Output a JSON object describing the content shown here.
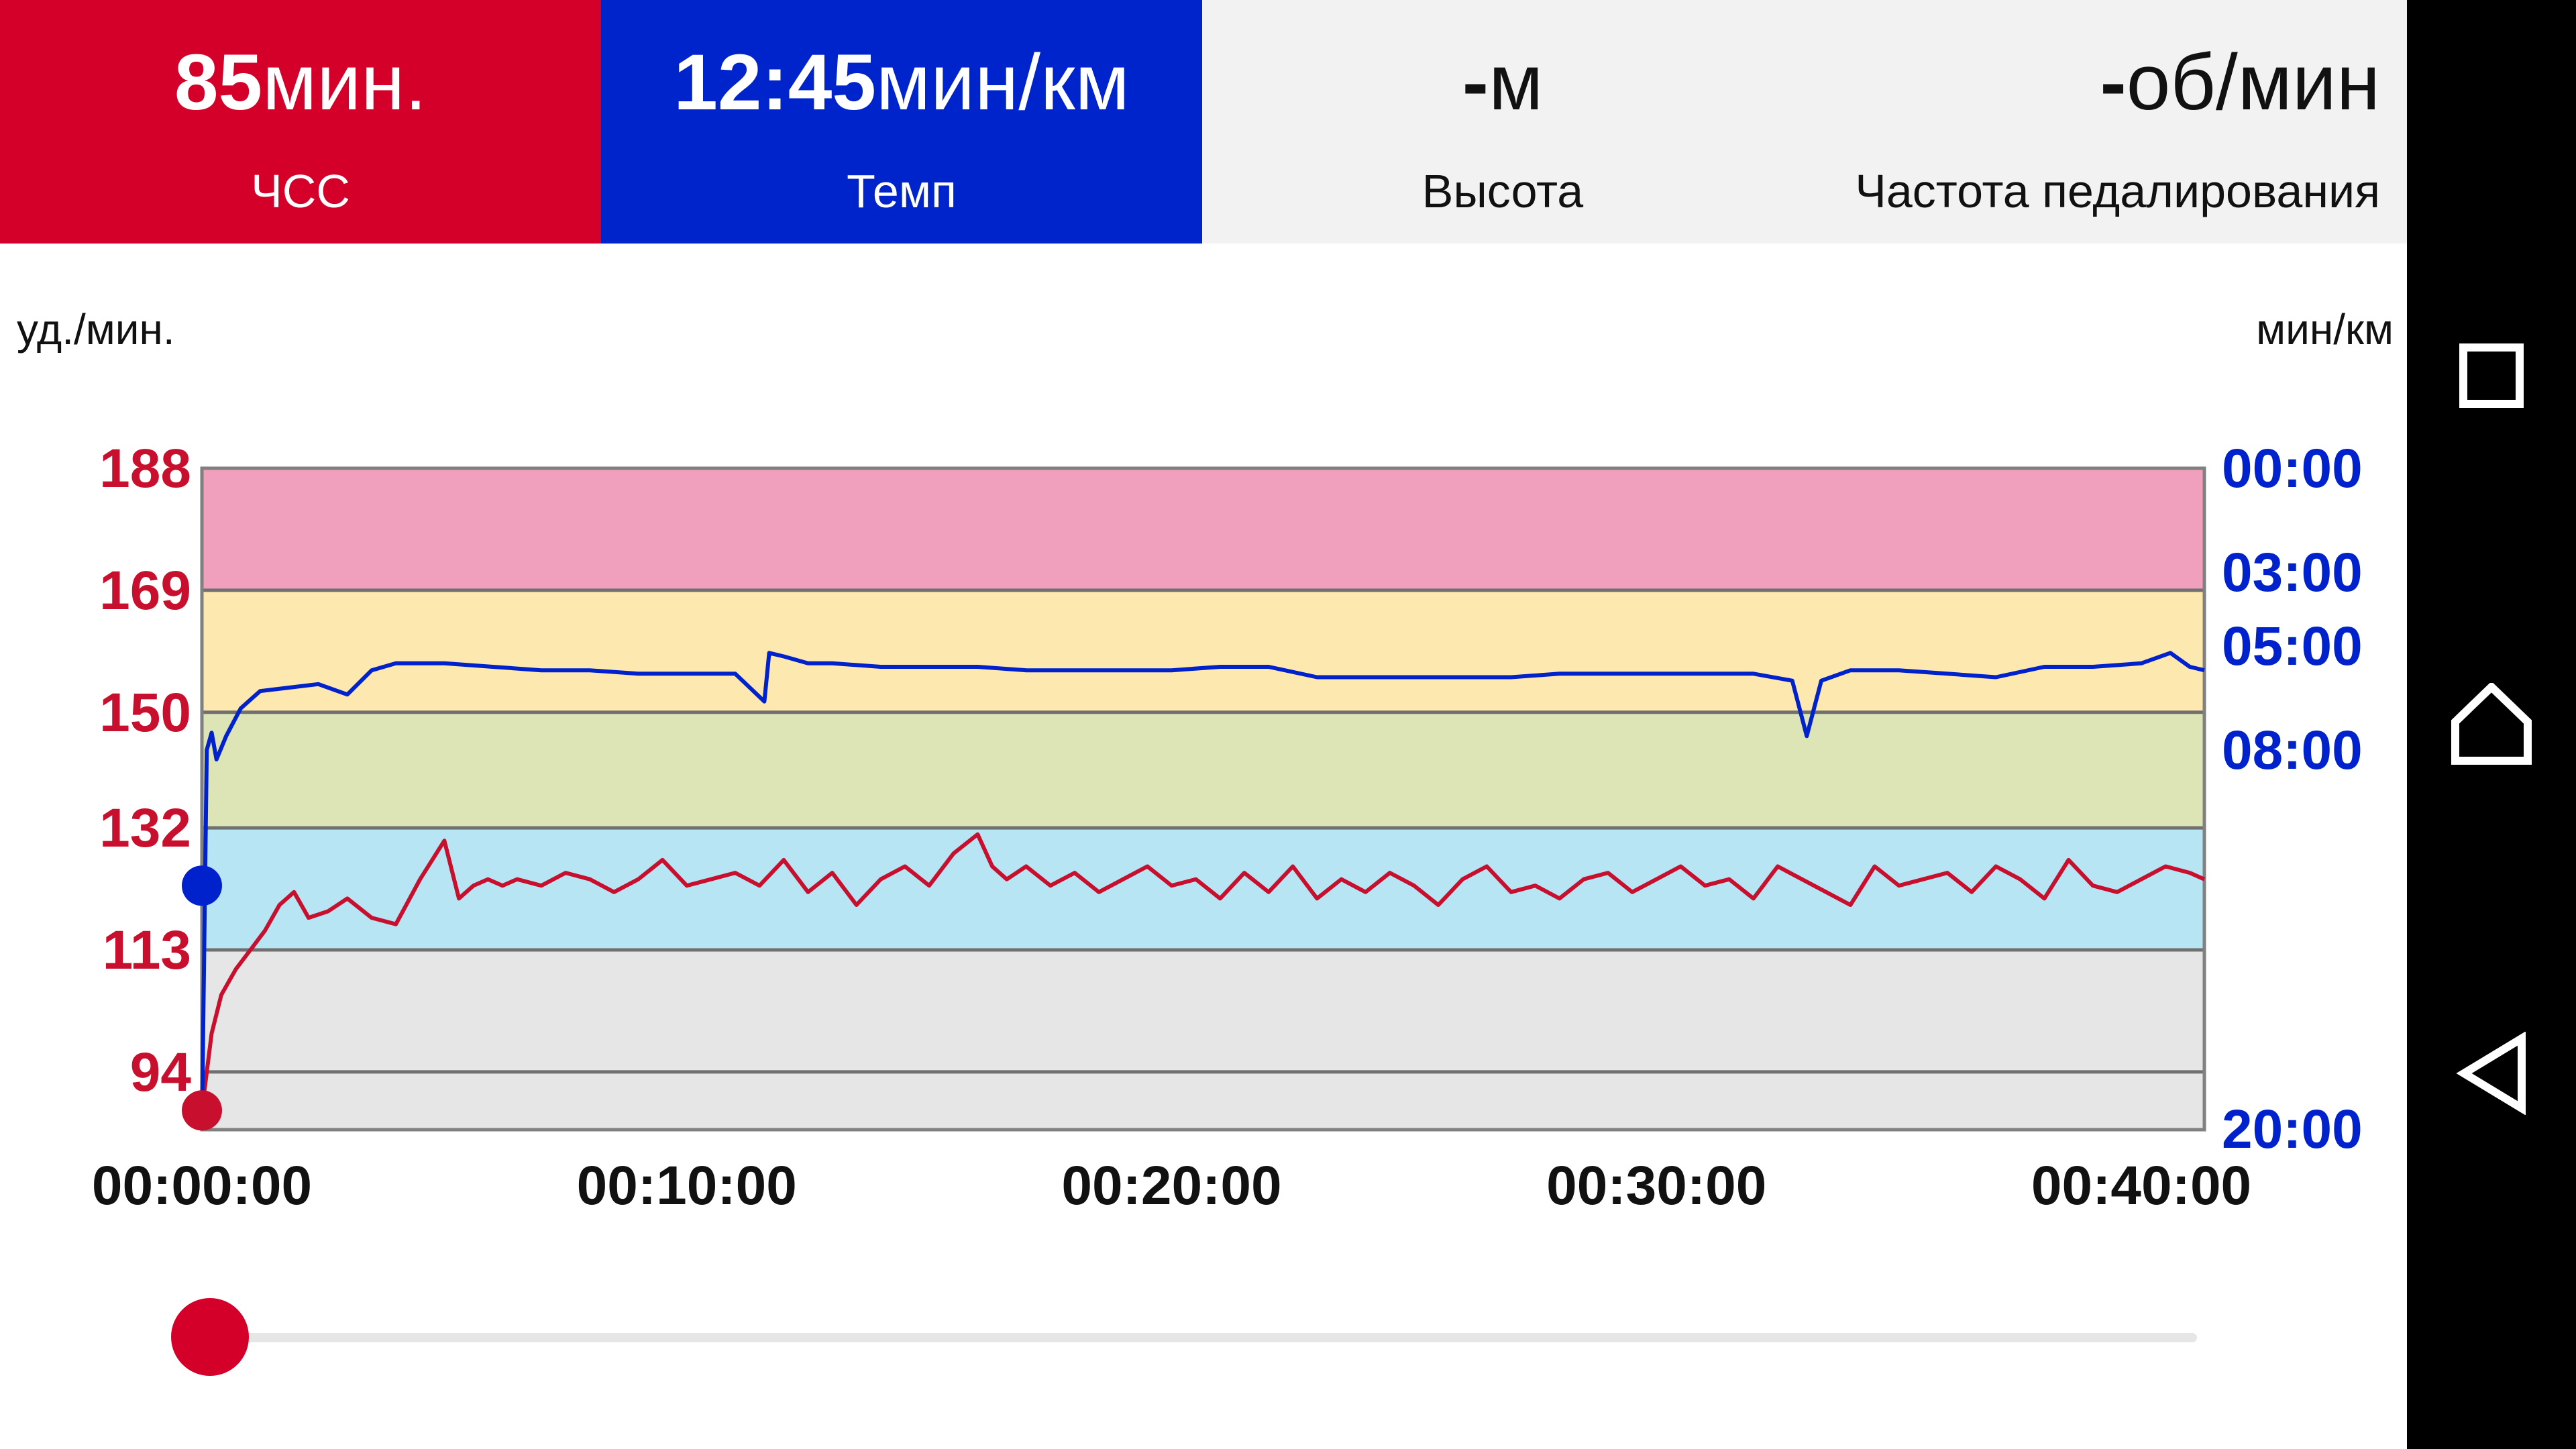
{
  "metrics": {
    "hr": {
      "value": "85",
      "unit": "мин.",
      "label": "ЧСС"
    },
    "pace": {
      "value": "12:45",
      "unit": "мин/км",
      "label": "Темп"
    },
    "altitude": {
      "value": "-",
      "unit": "м",
      "label": "Высота"
    },
    "cadence": {
      "value": "-",
      "unit": "об/мин",
      "label": "Частота педалирования"
    }
  },
  "chart_data": {
    "type": "line",
    "ylabel": "уд./мин.",
    "y2label": "мин/км",
    "yticks": [
      "188",
      "169",
      "150",
      "132",
      "113",
      "94"
    ],
    "yticks_values": [
      188,
      169,
      150,
      132,
      113,
      94
    ],
    "ylim": [
      85,
      188
    ],
    "y2ticks": [
      "00:00",
      "03:00",
      "05:00",
      "08:00",
      "20:00"
    ],
    "y2ticks_minutes": [
      0,
      3,
      5,
      8,
      20
    ],
    "xticks": [
      "00:00:00",
      "00:10:00",
      "00:20:00",
      "00:30:00",
      "00:40:00"
    ],
    "xlim_minutes": [
      0,
      41.3
    ],
    "zones": [
      {
        "from": 169,
        "to": 188,
        "color": "#f0a0bc"
      },
      {
        "from": 150,
        "to": 169,
        "color": "#fde8b0"
      },
      {
        "from": 132,
        "to": 150,
        "color": "#dde4b6"
      },
      {
        "from": 113,
        "to": 132,
        "color": "#b8e5f4"
      },
      {
        "from": 85,
        "to": 113,
        "color": "#e6e6e6"
      }
    ],
    "series": [
      {
        "name": "ЧСС",
        "axis": "left",
        "color": "#c8102e",
        "x": [
          0,
          0.2,
          0.4,
          0.7,
          1.0,
          1.3,
          1.6,
          1.9,
          2.2,
          2.6,
          3.0,
          3.5,
          4.0,
          4.5,
          5.0,
          5.3,
          5.6,
          5.9,
          6.2,
          6.5,
          7.0,
          7.5,
          8.0,
          8.5,
          9.0,
          9.5,
          10.0,
          10.5,
          11.0,
          11.5,
          12.0,
          12.5,
          13.0,
          13.5,
          14.0,
          14.5,
          15.0,
          15.5,
          16.0,
          16.3,
          16.6,
          17.0,
          17.5,
          18.0,
          18.5,
          19.0,
          19.5,
          20.0,
          20.5,
          21.0,
          21.5,
          22.0,
          22.5,
          23.0,
          23.5,
          24.0,
          24.5,
          25.0,
          25.5,
          26.0,
          26.5,
          27.0,
          27.5,
          28.0,
          28.5,
          29.0,
          29.5,
          30.0,
          30.5,
          31.0,
          31.5,
          32.0,
          32.5,
          33.0,
          33.5,
          34.0,
          34.5,
          35.0,
          35.5,
          36.0,
          36.5,
          37.0,
          37.5,
          38.0,
          38.5,
          39.0,
          39.5,
          40.0,
          40.5,
          41.0,
          41.3
        ],
        "values": [
          88,
          100,
          106,
          110,
          113,
          116,
          120,
          122,
          118,
          119,
          121,
          118,
          117,
          124,
          130,
          121,
          123,
          124,
          123,
          124,
          123,
          125,
          124,
          122,
          124,
          127,
          123,
          124,
          125,
          123,
          127,
          122,
          125,
          120,
          124,
          126,
          123,
          128,
          131,
          126,
          124,
          126,
          123,
          125,
          122,
          124,
          126,
          123,
          124,
          121,
          125,
          122,
          126,
          121,
          124,
          122,
          125,
          123,
          120,
          124,
          126,
          122,
          123,
          121,
          124,
          125,
          122,
          124,
          126,
          123,
          124,
          121,
          126,
          124,
          122,
          120,
          126,
          123,
          124,
          125,
          122,
          126,
          124,
          121,
          127,
          123,
          122,
          124,
          126,
          125,
          124
        ]
      },
      {
        "name": "Темп",
        "axis": "right",
        "color": "#0022cc",
        "x": [
          0,
          0.1,
          0.2,
          0.3,
          0.5,
          0.8,
          1.2,
          1.8,
          2.4,
          3.0,
          3.5,
          4.0,
          5.0,
          6.0,
          7.0,
          8.0,
          9.0,
          10.0,
          11.0,
          11.6,
          11.7,
          12.0,
          12.5,
          13.0,
          14.0,
          15.0,
          16.0,
          17.0,
          18.0,
          19.0,
          20.0,
          21.0,
          22.0,
          23.0,
          24.0,
          25.0,
          26.0,
          27.0,
          28.0,
          29.0,
          30.0,
          31.0,
          32.0,
          32.8,
          33.1,
          33.4,
          34.0,
          35.0,
          36.0,
          37.0,
          38.0,
          39.0,
          40.0,
          40.6,
          41.0,
          41.3
        ],
        "values": [
          20,
          8.0,
          7.5,
          8.3,
          7.6,
          6.8,
          6.3,
          6.2,
          6.1,
          6.4,
          5.7,
          5.5,
          5.5,
          5.6,
          5.7,
          5.7,
          5.8,
          5.8,
          5.8,
          6.6,
          5.2,
          5.3,
          5.5,
          5.5,
          5.6,
          5.6,
          5.6,
          5.7,
          5.7,
          5.7,
          5.7,
          5.6,
          5.6,
          5.9,
          5.9,
          5.9,
          5.9,
          5.9,
          5.8,
          5.8,
          5.8,
          5.8,
          5.8,
          6.0,
          7.6,
          6.0,
          5.7,
          5.7,
          5.8,
          5.9,
          5.6,
          5.6,
          5.5,
          5.2,
          5.6,
          5.7
        ]
      }
    ],
    "cursor_minutes": 0,
    "grid": true
  },
  "slider": {
    "position": 0
  },
  "nav": {
    "icons": [
      "recents-icon",
      "home-icon",
      "back-icon"
    ]
  }
}
